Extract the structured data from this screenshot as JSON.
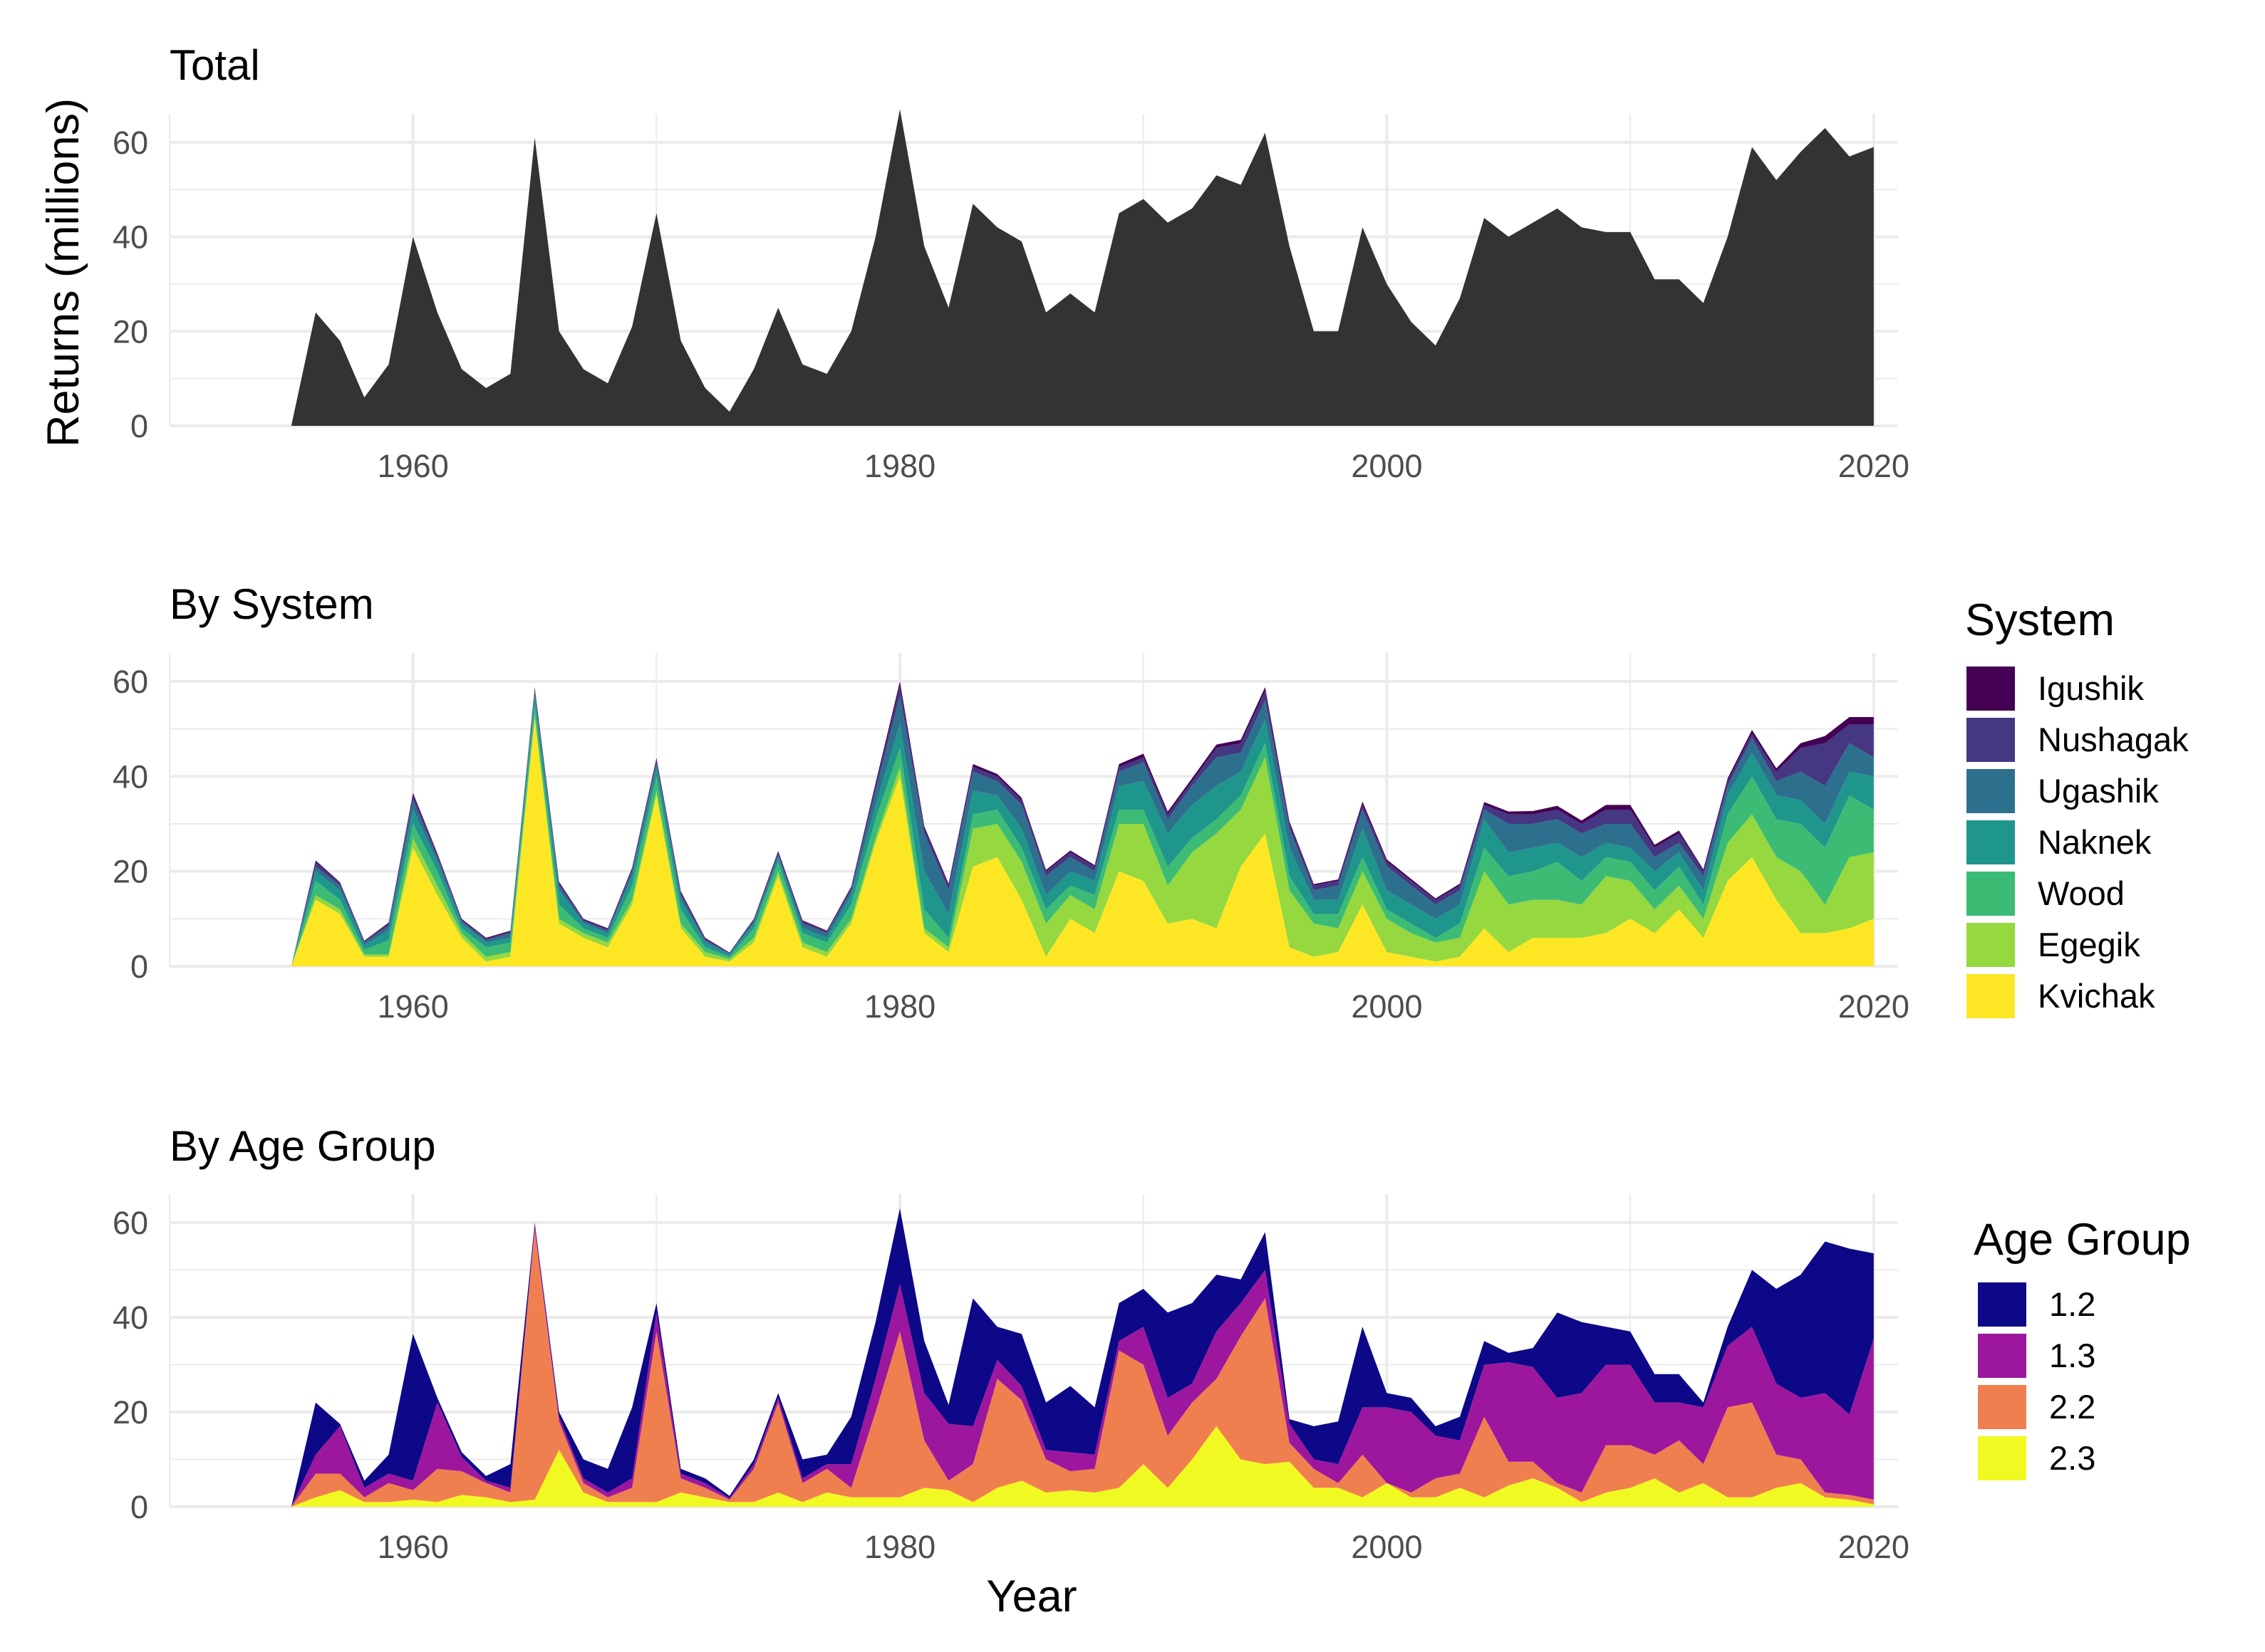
{
  "chart_data": [
    {
      "type": "area",
      "title": "Total",
      "xlabel": "",
      "ylabel": "Returns (millions)",
      "xlim": [
        1950,
        2021
      ],
      "ylim": [
        0,
        66
      ],
      "x_ticks": [
        1960,
        1980,
        2000,
        2020
      ],
      "y_ticks": [
        0,
        20,
        40,
        60
      ],
      "color": "#333333",
      "x": [
        1955,
        1956,
        1957,
        1958,
        1959,
        1960,
        1961,
        1962,
        1963,
        1964,
        1965,
        1966,
        1967,
        1968,
        1969,
        1970,
        1971,
        1972,
        1973,
        1974,
        1975,
        1976,
        1977,
        1978,
        1979,
        1980,
        1981,
        1982,
        1983,
        1984,
        1985,
        1986,
        1987,
        1988,
        1989,
        1990,
        1991,
        1992,
        1993,
        1994,
        1995,
        1996,
        1997,
        1998,
        1999,
        2000,
        2001,
        2002,
        2003,
        2004,
        2005,
        2006,
        2007,
        2008,
        2009,
        2010,
        2011,
        2012,
        2013,
        2014,
        2015,
        2016,
        2017,
        2018,
        2019,
        2020
      ],
      "values": [
        0,
        24,
        18,
        6,
        13,
        40,
        24,
        12,
        8,
        11,
        61,
        20,
        12,
        9,
        21,
        45,
        18,
        8,
        3,
        12,
        25,
        13,
        11,
        20,
        40,
        67,
        38,
        25,
        47,
        42,
        39,
        24,
        28,
        24,
        45,
        48,
        43,
        46,
        53,
        51,
        62,
        38,
        20,
        20,
        42,
        30,
        22,
        17,
        27,
        44,
        40,
        43,
        46,
        42,
        41,
        41,
        31,
        31,
        26,
        40,
        59,
        52,
        58,
        63,
        57,
        59
      ]
    },
    {
      "type": "area",
      "stacked": true,
      "title": "By System",
      "xlabel": "",
      "ylabel": "",
      "xlim": [
        1950,
        2021
      ],
      "ylim": [
        0,
        66
      ],
      "x_ticks": [
        1960,
        1980,
        2000,
        2020
      ],
      "y_ticks": [
        0,
        20,
        40,
        60
      ],
      "legend_title": "System",
      "legend_position": "right",
      "x": [
        1955,
        1956,
        1957,
        1958,
        1959,
        1960,
        1961,
        1962,
        1963,
        1964,
        1965,
        1966,
        1967,
        1968,
        1969,
        1970,
        1971,
        1972,
        1973,
        1974,
        1975,
        1976,
        1977,
        1978,
        1979,
        1980,
        1981,
        1982,
        1983,
        1984,
        1985,
        1986,
        1987,
        1988,
        1989,
        1990,
        1991,
        1992,
        1993,
        1994,
        1995,
        1996,
        1997,
        1998,
        1999,
        2000,
        2001,
        2002,
        2003,
        2004,
        2005,
        2006,
        2007,
        2008,
        2009,
        2010,
        2011,
        2012,
        2013,
        2014,
        2015,
        2016,
        2017,
        2018,
        2019,
        2020
      ],
      "series": [
        {
          "name": "Kvichak",
          "color": "#FDE725",
          "values": [
            0,
            14,
            11,
            2,
            2,
            25,
            15,
            6,
            1,
            2,
            52,
            9,
            6,
            4,
            13,
            36,
            8,
            2,
            1,
            5,
            19,
            4,
            2,
            9,
            26,
            40,
            7,
            3,
            21,
            23,
            14,
            2,
            10,
            7,
            20,
            18,
            9,
            10,
            8,
            21,
            28,
            4,
            2,
            3,
            13,
            3,
            2,
            1,
            2,
            8,
            3,
            6,
            6,
            6,
            7,
            10,
            7,
            12,
            6,
            18,
            23,
            14,
            7,
            7,
            8,
            10
          ]
        },
        {
          "name": "Egegik",
          "color": "#95D840",
          "values": [
            0,
            1,
            1,
            0.5,
            0.5,
            2,
            2,
            1,
            1,
            1,
            1,
            1,
            1,
            1,
            1,
            1,
            1,
            1,
            0.5,
            1,
            1,
            1,
            1,
            1,
            1,
            2,
            1,
            1,
            8,
            7,
            8,
            7,
            5,
            5,
            10,
            12,
            8,
            14,
            20,
            12,
            16,
            12,
            7,
            5,
            7,
            7,
            5,
            4,
            4,
            12,
            10,
            8,
            8,
            7,
            12,
            8,
            5,
            5,
            4,
            8,
            9,
            9,
            13,
            6,
            15,
            14
          ]
        },
        {
          "name": "Wood",
          "color": "#3CBB75",
          "values": [
            0,
            3,
            2,
            1,
            3,
            3,
            3,
            1,
            2,
            2,
            2,
            3,
            1,
            1,
            3,
            3,
            3,
            1,
            0.5,
            2,
            2,
            2,
            2,
            3,
            4,
            4,
            4,
            2,
            3,
            3,
            3,
            3,
            2,
            3,
            3,
            3,
            4,
            3,
            3,
            3,
            3,
            3,
            2,
            3,
            3,
            2,
            2,
            1,
            3,
            5,
            6,
            6,
            8,
            5,
            4,
            4,
            4,
            4,
            3,
            6,
            8,
            8,
            10,
            12,
            13,
            9
          ]
        },
        {
          "name": "Naknek",
          "color": "#1F968B",
          "values": [
            0,
            2,
            2,
            1,
            2,
            3,
            2,
            1,
            1,
            1,
            2,
            3,
            1,
            1,
            2,
            2,
            2,
            1,
            0.5,
            1,
            1,
            1,
            1,
            2,
            3,
            5,
            8,
            5,
            5,
            3,
            4,
            3,
            3,
            3,
            5,
            6,
            7,
            7,
            7,
            5,
            5,
            6,
            3,
            3,
            6,
            4,
            4,
            4,
            4,
            6,
            5,
            5,
            4,
            5,
            3,
            3,
            4,
            3,
            3,
            4,
            5,
            5,
            5,
            5,
            5,
            7
          ]
        },
        {
          "name": "Ugashik",
          "color": "#2D708E",
          "values": [
            0,
            1,
            1,
            0.5,
            1,
            2,
            1,
            0.5,
            0.5,
            1,
            1,
            1,
            0.5,
            0.5,
            1,
            1,
            1,
            0.5,
            0.2,
            0.5,
            0.5,
            1,
            1,
            1,
            3,
            6,
            8,
            5,
            4,
            3,
            5,
            4,
            3,
            2,
            3,
            4,
            3,
            4,
            6,
            4,
            4,
            4,
            2,
            3,
            4,
            5,
            4,
            3,
            3,
            2,
            6,
            5,
            5,
            5,
            4,
            5,
            3,
            2,
            3,
            2,
            3,
            3,
            6,
            8,
            6,
            4
          ]
        },
        {
          "name": "Nushagak",
          "color": "#453781",
          "values": [
            0,
            1,
            0.5,
            0.3,
            0.5,
            1,
            0.5,
            0.3,
            0.3,
            0.3,
            0.5,
            0.5,
            0.3,
            0.3,
            0.5,
            0.5,
            0.5,
            0.3,
            0.1,
            0.3,
            0.5,
            0.5,
            0.3,
            0.5,
            1,
            2,
            1,
            1,
            1,
            1,
            1,
            1,
            1,
            1,
            1,
            1,
            1,
            1,
            2,
            2,
            2,
            1,
            1,
            1,
            1,
            1,
            1,
            1,
            1,
            1,
            2,
            2,
            2,
            2,
            3,
            3,
            2,
            2,
            1,
            1,
            1,
            2,
            5,
            9,
            4,
            7
          ]
        },
        {
          "name": "Igushik",
          "color": "#440154",
          "values": [
            0,
            0.3,
            0.2,
            0.1,
            0.2,
            0.5,
            0.3,
            0.2,
            0.2,
            0.2,
            0.3,
            0.3,
            0.2,
            0.2,
            0.3,
            0.4,
            0.3,
            0.2,
            0.1,
            0.2,
            0.3,
            0.2,
            0.2,
            0.3,
            0.6,
            1,
            0.5,
            0.4,
            0.6,
            0.5,
            0.5,
            0.3,
            0.4,
            0.3,
            0.6,
            0.8,
            0.6,
            0.6,
            0.7,
            0.7,
            0.8,
            0.5,
            0.3,
            0.3,
            0.7,
            0.5,
            0.4,
            0.3,
            0.4,
            0.6,
            0.6,
            0.7,
            0.8,
            0.7,
            1,
            1,
            0.6,
            0.6,
            0.4,
            0.6,
            0.8,
            0.7,
            1,
            1.5,
            1.5,
            1.5
          ]
        }
      ]
    },
    {
      "type": "area",
      "stacked": true,
      "title": "By Age Group",
      "xlabel": "Year",
      "ylabel": "",
      "xlim": [
        1950,
        2021
      ],
      "ylim": [
        0,
        66
      ],
      "x_ticks": [
        1960,
        1980,
        2000,
        2020
      ],
      "y_ticks": [
        0,
        20,
        40,
        60
      ],
      "legend_title": "Age Group",
      "legend_position": "right",
      "x": [
        1955,
        1956,
        1957,
        1958,
        1959,
        1960,
        1961,
        1962,
        1963,
        1964,
        1965,
        1966,
        1967,
        1968,
        1969,
        1970,
        1971,
        1972,
        1973,
        1974,
        1975,
        1976,
        1977,
        1978,
        1979,
        1980,
        1981,
        1982,
        1983,
        1984,
        1985,
        1986,
        1987,
        1988,
        1989,
        1990,
        1991,
        1992,
        1993,
        1994,
        1995,
        1996,
        1997,
        1998,
        1999,
        2000,
        2001,
        2002,
        2003,
        2004,
        2005,
        2006,
        2007,
        2008,
        2009,
        2010,
        2011,
        2012,
        2013,
        2014,
        2015,
        2016,
        2017,
        2018,
        2019,
        2020
      ],
      "series": [
        {
          "name": "2.3",
          "color": "#F0F921",
          "values": [
            0,
            2,
            3.5,
            1,
            1,
            1.5,
            1,
            2.5,
            2,
            1,
            1.5,
            12,
            3,
            1,
            1,
            1,
            3,
            2,
            1,
            1,
            3,
            1,
            3,
            2,
            2,
            2,
            4,
            3.5,
            1,
            4,
            5.5,
            3,
            3.5,
            3,
            4,
            9,
            4,
            10,
            17,
            10,
            9,
            9.5,
            4,
            4,
            2,
            5,
            2,
            2,
            4,
            2,
            4.5,
            6,
            4,
            1,
            3,
            4,
            6,
            3,
            5,
            2,
            2,
            4,
            5,
            2,
            1.5,
            0.5
          ]
        },
        {
          "name": "2.2",
          "color": "#F07F4F",
          "values": [
            0,
            5,
            3.5,
            1,
            4,
            2,
            7,
            5,
            3,
            2,
            57,
            6,
            2,
            1,
            3,
            36,
            3,
            2,
            0.5,
            7,
            19,
            4,
            5,
            2,
            18,
            35,
            10,
            2,
            8,
            23,
            17,
            7,
            4,
            5,
            29,
            21,
            11,
            12,
            10,
            26,
            35,
            4,
            4,
            1,
            9,
            0,
            1,
            4,
            3,
            17,
            5,
            3.5,
            1,
            2,
            10,
            9,
            5,
            11,
            4,
            19,
            20,
            7,
            5,
            1,
            1,
            1
          ]
        },
        {
          "name": "1.3",
          "color": "#9C179E",
          "values": [
            0,
            4,
            10,
            2,
            2,
            2,
            14,
            3,
            0.5,
            1,
            1,
            1,
            1,
            1,
            2,
            4,
            1,
            1,
            0.3,
            1,
            1,
            1,
            1,
            5,
            7,
            10,
            10,
            12,
            8,
            4,
            3,
            2,
            4,
            3,
            2,
            8,
            8,
            4,
            10,
            7,
            6,
            4,
            2,
            4,
            10,
            16,
            17,
            9,
            7,
            11,
            21,
            20,
            18,
            21,
            17,
            17,
            11,
            8,
            12,
            13,
            16,
            15,
            13,
            21,
            17,
            34
          ]
        },
        {
          "name": "1.2",
          "color": "#0D0887",
          "values": [
            0,
            11,
            0.5,
            1.5,
            4,
            31,
            1,
            1,
            1,
            5,
            0.5,
            1,
            4,
            5,
            15,
            2,
            1,
            1,
            0.5,
            1,
            1,
            4,
            2,
            10,
            12,
            16,
            11,
            4,
            27,
            7,
            11,
            10,
            14,
            10,
            8,
            8,
            18,
            17,
            12,
            5,
            8,
            1,
            7,
            9,
            17,
            3,
            3,
            2,
            5,
            5,
            2,
            4,
            18,
            15,
            8,
            7,
            6,
            6,
            1,
            4,
            12,
            20,
            26,
            32,
            35,
            18
          ]
        }
      ]
    }
  ]
}
